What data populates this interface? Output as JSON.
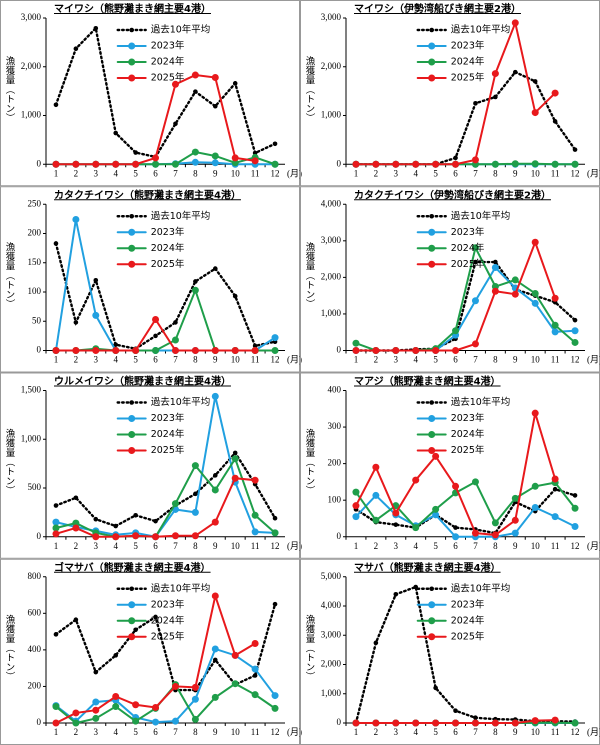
{
  "chart_data": [
    {
      "type": "line",
      "title": "マイワシ（熊野灘まき網主要4港）",
      "y_label": "漁獲量（トン）",
      "x_unit": "(月)",
      "legend": "upper center",
      "categories": [
        "1",
        "2",
        "3",
        "4",
        "5",
        "6",
        "7",
        "8",
        "9",
        "10",
        "11",
        "12"
      ],
      "ylim": [
        0,
        3000
      ],
      "yticks": [
        0,
        {
          "value": 1000,
          "label": "1,000"
        },
        {
          "value": 2000,
          "label": "2,000"
        },
        {
          "value": 3000,
          "label": "3,000"
        }
      ],
      "series": [
        {
          "name": "過去10年平均",
          "color": "#000000",
          "style": "dotted",
          "values": [
            1220,
            2370,
            2790,
            640,
            240,
            150,
            830,
            1490,
            1190,
            1660,
            230,
            420
          ]
        },
        {
          "name": "2023年",
          "color": "#21a0e0",
          "style": "solid",
          "values": [
            0,
            0,
            0,
            0,
            0,
            0,
            10,
            40,
            30,
            0,
            0,
            0
          ]
        },
        {
          "name": "2024年",
          "color": "#1f9e4a",
          "style": "solid",
          "values": [
            0,
            0,
            0,
            0,
            0,
            0,
            0,
            250,
            170,
            30,
            140,
            0
          ]
        },
        {
          "name": "2025年",
          "color": "#e8191c",
          "style": "solid",
          "values": [
            0,
            0,
            0,
            0,
            0,
            130,
            1640,
            1830,
            1780,
            130,
            70,
            null
          ]
        }
      ]
    },
    {
      "type": "line",
      "title": "マイワシ（伊勢湾船びき網主要2港）",
      "y_label": "漁獲量（トン）",
      "x_unit": "(月)",
      "legend": "upper center",
      "categories": [
        "1",
        "2",
        "3",
        "4",
        "5",
        "6",
        "7",
        "8",
        "9",
        "10",
        "11",
        "12"
      ],
      "ylim": [
        0,
        3000
      ],
      "yticks": [
        0,
        {
          "value": 1000,
          "label": "1,000"
        },
        {
          "value": 2000,
          "label": "2,000"
        },
        {
          "value": 3000,
          "label": "3,000"
        }
      ],
      "series": [
        {
          "name": "過去10年平均",
          "color": "#000000",
          "style": "dotted",
          "values": [
            0,
            0,
            0,
            0,
            0,
            130,
            1250,
            1380,
            1890,
            1700,
            880,
            300
          ]
        },
        {
          "name": "2023年",
          "color": "#21a0e0",
          "style": "solid",
          "values": [
            0,
            0,
            0,
            0,
            0,
            0,
            0,
            0,
            0,
            0,
            0,
            0
          ]
        },
        {
          "name": "2024年",
          "color": "#1f9e4a",
          "style": "solid",
          "values": [
            0,
            0,
            0,
            0,
            0,
            0,
            0,
            0,
            10,
            10,
            0,
            0
          ]
        },
        {
          "name": "2025年",
          "color": "#e8191c",
          "style": "solid",
          "values": [
            0,
            0,
            0,
            0,
            0,
            0,
            90,
            1860,
            2900,
            1060,
            1460,
            null
          ]
        }
      ]
    },
    {
      "type": "line",
      "title": "カタクチイワシ（熊野灘まき網主要4港）",
      "y_label": "漁獲量（トン）",
      "x_unit": "(月)",
      "legend": "upper center",
      "categories": [
        "1",
        "2",
        "3",
        "4",
        "5",
        "6",
        "7",
        "8",
        "9",
        "10",
        "11",
        "12"
      ],
      "ylim": [
        0,
        250
      ],
      "yticks": [
        0,
        50,
        100,
        150,
        200,
        250
      ],
      "series": [
        {
          "name": "過去10年平均",
          "color": "#000000",
          "style": "dotted",
          "values": [
            183,
            48,
            120,
            10,
            3,
            25,
            48,
            118,
            140,
            93,
            8,
            15
          ]
        },
        {
          "name": "2023年",
          "color": "#21a0e0",
          "style": "solid",
          "values": [
            0,
            224,
            60,
            0,
            0,
            0,
            0,
            0,
            0,
            0,
            0,
            22
          ]
        },
        {
          "name": "2024年",
          "color": "#1f9e4a",
          "style": "solid",
          "values": [
            0,
            0,
            3,
            0,
            0,
            0,
            18,
            103,
            0,
            0,
            0,
            0
          ]
        },
        {
          "name": "2025年",
          "color": "#e8191c",
          "style": "solid",
          "values": [
            0,
            0,
            0,
            0,
            0,
            53,
            0,
            0,
            0,
            0,
            0,
            null
          ]
        }
      ]
    },
    {
      "type": "line",
      "title": "カタクチイワシ（伊勢湾船びき網主要2港）",
      "y_label": "漁獲量（トン）",
      "x_unit": "(月)",
      "legend": "upper center",
      "categories": [
        "1",
        "2",
        "3",
        "4",
        "5",
        "6",
        "7",
        "8",
        "9",
        "10",
        "11",
        "12"
      ],
      "ylim": [
        0,
        4000
      ],
      "yticks": [
        0,
        {
          "value": 1000,
          "label": "1,000"
        },
        {
          "value": 2000,
          "label": "2,000"
        },
        {
          "value": 3000,
          "label": "3,000"
        },
        {
          "value": 4000,
          "label": "4,000"
        }
      ],
      "series": [
        {
          "name": "過去10年平均",
          "color": "#000000",
          "style": "dotted",
          "values": [
            0,
            0,
            0,
            30,
            50,
            320,
            2420,
            2420,
            1670,
            1500,
            1320,
            830
          ]
        },
        {
          "name": "2023年",
          "color": "#21a0e0",
          "style": "solid",
          "values": [
            0,
            0,
            0,
            0,
            0,
            420,
            1360,
            2270,
            1710,
            1290,
            510,
            540
          ]
        },
        {
          "name": "2024年",
          "color": "#1f9e4a",
          "style": "solid",
          "values": [
            200,
            0,
            0,
            0,
            50,
            540,
            2810,
            1750,
            1930,
            1560,
            690,
            220
          ]
        },
        {
          "name": "2025年",
          "color": "#e8191c",
          "style": "solid",
          "values": [
            0,
            0,
            0,
            0,
            0,
            0,
            180,
            1620,
            1540,
            2960,
            1430,
            null
          ]
        }
      ]
    },
    {
      "type": "line",
      "title": "ウルメイワシ（熊野灘まき網主要4港）",
      "y_label": "漁獲量（トン）",
      "x_unit": "(月)",
      "legend": "upper center",
      "categories": [
        "1",
        "2",
        "3",
        "4",
        "5",
        "6",
        "7",
        "8",
        "9",
        "10",
        "11",
        "12"
      ],
      "ylim": [
        0,
        1500
      ],
      "yticks": [
        0,
        500,
        {
          "value": 1000,
          "label": "1,000"
        },
        {
          "value": 1500,
          "label": "1,500"
        }
      ],
      "series": [
        {
          "name": "過去10年平均",
          "color": "#000000",
          "style": "dotted",
          "values": [
            320,
            400,
            180,
            110,
            220,
            160,
            320,
            440,
            630,
            860,
            540,
            190
          ]
        },
        {
          "name": "2023年",
          "color": "#21a0e0",
          "style": "solid",
          "values": [
            150,
            100,
            60,
            20,
            40,
            0,
            280,
            250,
            1440,
            560,
            50,
            40
          ]
        },
        {
          "name": "2024年",
          "color": "#1f9e4a",
          "style": "solid",
          "values": [
            90,
            140,
            40,
            0,
            10,
            0,
            340,
            730,
            480,
            800,
            220,
            40
          ]
        },
        {
          "name": "2025年",
          "color": "#e8191c",
          "style": "solid",
          "values": [
            30,
            90,
            0,
            0,
            10,
            0,
            10,
            10,
            150,
            600,
            580,
            null
          ]
        }
      ]
    },
    {
      "type": "line",
      "title": "マアジ（熊野灘まき網主要4港）",
      "y_label": "漁獲量（トン）",
      "x_unit": "(月)",
      "legend": "upper center",
      "categories": [
        "1",
        "2",
        "3",
        "4",
        "5",
        "6",
        "7",
        "8",
        "9",
        "10",
        "11",
        "12"
      ],
      "ylim": [
        0,
        400
      ],
      "yticks": [
        0,
        100,
        200,
        300,
        400
      ],
      "series": [
        {
          "name": "過去10年平均",
          "color": "#000000",
          "style": "dotted",
          "values": [
            75,
            40,
            33,
            25,
            60,
            25,
            20,
            10,
            95,
            70,
            130,
            113
          ]
        },
        {
          "name": "2023年",
          "color": "#21a0e0",
          "style": "solid",
          "values": [
            55,
            113,
            60,
            30,
            60,
            0,
            0,
            0,
            10,
            80,
            55,
            28
          ]
        },
        {
          "name": "2024年",
          "color": "#1f9e4a",
          "style": "solid",
          "values": [
            122,
            45,
            85,
            25,
            75,
            120,
            150,
            38,
            105,
            138,
            148,
            78
          ]
        },
        {
          "name": "2025年",
          "color": "#e8191c",
          "style": "solid",
          "values": [
            85,
            190,
            65,
            155,
            220,
            138,
            10,
            5,
            45,
            338,
            158,
            null
          ]
        }
      ]
    },
    {
      "type": "line",
      "title": "ゴマサバ（熊野灘まき網主要4港）",
      "y_label": "漁獲量（トン）",
      "x_unit": "(月)",
      "legend": "upper center",
      "categories": [
        "1",
        "2",
        "3",
        "4",
        "5",
        "6",
        "7",
        "8",
        "9",
        "10",
        "11",
        "12"
      ],
      "ylim": [
        0,
        800
      ],
      "yticks": [
        0,
        200,
        400,
        600,
        800
      ],
      "series": [
        {
          "name": "過去10年平均",
          "color": "#000000",
          "style": "dotted",
          "values": [
            485,
            565,
            278,
            370,
            510,
            580,
            180,
            180,
            345,
            210,
            260,
            650
          ]
        },
        {
          "name": "2023年",
          "color": "#21a0e0",
          "style": "solid",
          "values": [
            95,
            10,
            115,
            125,
            30,
            5,
            10,
            130,
            405,
            370,
            295,
            150
          ]
        },
        {
          "name": "2024年",
          "color": "#1f9e4a",
          "style": "solid",
          "values": [
            90,
            0,
            25,
            90,
            10,
            80,
            210,
            20,
            140,
            215,
            155,
            80
          ]
        },
        {
          "name": "2025年",
          "color": "#e8191c",
          "style": "solid",
          "values": [
            0,
            55,
            70,
            145,
            100,
            85,
            200,
            195,
            695,
            370,
            435,
            null
          ]
        }
      ]
    },
    {
      "type": "line",
      "title": "マサバ（熊野灘まき網主要4港）",
      "y_label": "漁獲量（トン）",
      "x_unit": "(月)",
      "legend": "upper center",
      "categories": [
        "1",
        "2",
        "3",
        "4",
        "5",
        "6",
        "7",
        "8",
        "9",
        "10",
        "11",
        "12"
      ],
      "ylim": [
        0,
        5000
      ],
      "yticks": [
        0,
        {
          "value": 1000,
          "label": "1,000"
        },
        {
          "value": 2000,
          "label": "2,000"
        },
        {
          "value": 3000,
          "label": "3,000"
        },
        {
          "value": 4000,
          "label": "4,000"
        },
        {
          "value": 5000,
          "label": "5,000"
        }
      ],
      "series": [
        {
          "name": "過去10年平均",
          "color": "#000000",
          "style": "dotted",
          "values": [
            0,
            2740,
            4400,
            4650,
            1200,
            420,
            180,
            130,
            120,
            60,
            60,
            50
          ]
        },
        {
          "name": "2023年",
          "color": "#21a0e0",
          "style": "solid",
          "values": [
            0,
            0,
            0,
            0,
            0,
            0,
            0,
            0,
            0,
            0,
            0,
            0
          ]
        },
        {
          "name": "2024年",
          "color": "#1f9e4a",
          "style": "solid",
          "values": [
            0,
            0,
            0,
            0,
            0,
            0,
            0,
            0,
            0,
            10,
            10,
            0
          ]
        },
        {
          "name": "2025年",
          "color": "#e8191c",
          "style": "solid",
          "values": [
            0,
            0,
            0,
            0,
            0,
            0,
            0,
            0,
            0,
            80,
            100,
            null
          ]
        }
      ]
    }
  ]
}
